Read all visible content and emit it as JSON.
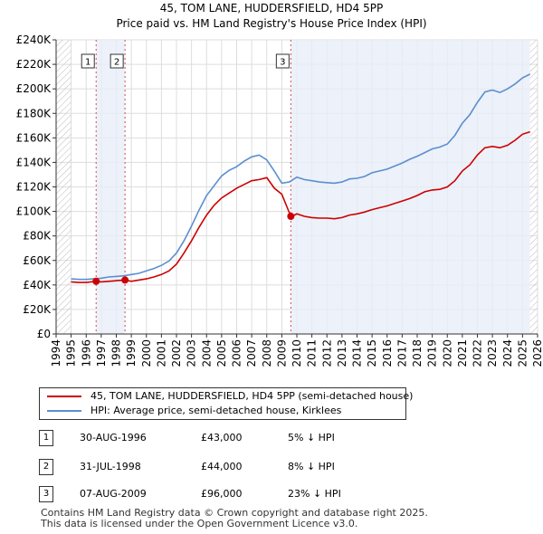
{
  "title": {
    "line1": "45, TOM LANE, HUDDERSFIELD, HD4 5PP",
    "line2": "Price paid vs. HM Land Registry's House Price Index (HPI)"
  },
  "legend": {
    "red_label": "45, TOM LANE, HUDDERSFIELD, HD4 5PP (semi-detached house)",
    "blue_label": "HPI: Average price, semi-detached house, Kirklees"
  },
  "transactions": [
    {
      "num": "1",
      "date": "30-AUG-1996",
      "price": "£43,000",
      "hpi": "5% ↓ HPI"
    },
    {
      "num": "2",
      "date": "31-JUL-1998",
      "price": "£44,000",
      "hpi": "8% ↓ HPI"
    },
    {
      "num": "3",
      "date": "07-AUG-2009",
      "price": "£96,000",
      "hpi": "23% ↓ HPI"
    }
  ],
  "footer": {
    "line1": "Contains HM Land Registry data © Crown copyright and database right 2025.",
    "line2": "This data is licensed under the Open Government Licence v3.0."
  },
  "colors": {
    "red": "#cc0000",
    "blue": "#5b8fd0",
    "grid": "#dddddd",
    "shade": "#e8eef8",
    "hatch": "#bbbbbb"
  },
  "chart_data": {
    "type": "line",
    "title": "45, TOM LANE, HUDDERSFIELD, HD4 5PP — Price paid vs. HM Land Registry's House Price Index (HPI)",
    "xlabel": "",
    "ylabel": "",
    "xlim": [
      1994,
      2026
    ],
    "ylim": [
      0,
      240000
    ],
    "x_ticks": [
      "1994",
      "1995",
      "1996",
      "1997",
      "1998",
      "1999",
      "2000",
      "2001",
      "2002",
      "2003",
      "2004",
      "2005",
      "2006",
      "2007",
      "2008",
      "2009",
      "2010",
      "2011",
      "2012",
      "2013",
      "2014",
      "2015",
      "2016",
      "2017",
      "2018",
      "2019",
      "2020",
      "2021",
      "2022",
      "2023",
      "2024",
      "2025",
      "2026"
    ],
    "y_ticks": [
      0,
      20000,
      40000,
      60000,
      80000,
      100000,
      120000,
      140000,
      160000,
      180000,
      200000,
      220000,
      240000
    ],
    "y_tick_labels": [
      "£0",
      "£20K",
      "£40K",
      "£60K",
      "£80K",
      "£100K",
      "£120K",
      "£140K",
      "£160K",
      "£180K",
      "£200K",
      "£220K",
      "£240K"
    ],
    "data_start_year": 1995,
    "data_end_year": 2025.5,
    "series": [
      {
        "name": "HPI: Average price, semi-detached house, Kirklees",
        "x": [
          1995.0,
          1995.5,
          1996.0,
          1996.5,
          1997.0,
          1997.5,
          1998.0,
          1998.5,
          1999.0,
          1999.5,
          2000.0,
          2000.5,
          2001.0,
          2001.5,
          2002.0,
          2002.5,
          2003.0,
          2003.5,
          2004.0,
          2004.5,
          2005.0,
          2005.5,
          2006.0,
          2006.5,
          2007.0,
          2007.5,
          2008.0,
          2008.5,
          2009.0,
          2009.5,
          2010.0,
          2010.5,
          2011.0,
          2011.5,
          2012.0,
          2012.5,
          2013.0,
          2013.5,
          2014.0,
          2014.5,
          2015.0,
          2015.5,
          2016.0,
          2016.5,
          2017.0,
          2017.5,
          2018.0,
          2018.5,
          2019.0,
          2019.5,
          2020.0,
          2020.5,
          2021.0,
          2021.5,
          2022.0,
          2022.5,
          2023.0,
          2023.5,
          2024.0,
          2024.5,
          2025.0,
          2025.5
        ],
        "y": [
          45000,
          44500,
          44500,
          45000,
          45500,
          46500,
          47000,
          47500,
          48500,
          49500,
          51500,
          53500,
          56000,
          59500,
          66000,
          76000,
          88000,
          101000,
          113000,
          121000,
          129000,
          133500,
          136500,
          141000,
          144500,
          146000,
          142000,
          133000,
          123000,
          124000,
          128000,
          126000,
          125000,
          124000,
          123500,
          123000,
          124000,
          126500,
          127000,
          128500,
          131500,
          133000,
          134500,
          137000,
          139500,
          142500,
          145000,
          148000,
          151000,
          152500,
          155000,
          162000,
          172000,
          179000,
          189000,
          197500,
          199000,
          197000,
          200000,
          204000,
          209000,
          212000
        ]
      },
      {
        "name": "45, TOM LANE, HUDDERSFIELD, HD4 5PP (semi-detached house)",
        "x": [
          1995.0,
          1995.5,
          1996.0,
          1996.66,
          1997.0,
          1997.5,
          1998.0,
          1998.58,
          1999.0,
          1999.5,
          2000.0,
          2000.5,
          2001.0,
          2001.5,
          2002.0,
          2002.5,
          2003.0,
          2003.5,
          2004.0,
          2004.5,
          2005.0,
          2005.5,
          2006.0,
          2006.5,
          2007.0,
          2007.5,
          2008.0,
          2008.5,
          2009.0,
          2009.6,
          2009.7,
          2010.0,
          2010.5,
          2011.0,
          2011.5,
          2012.0,
          2012.5,
          2013.0,
          2013.5,
          2014.0,
          2014.5,
          2015.0,
          2015.5,
          2016.0,
          2016.5,
          2017.0,
          2017.5,
          2018.0,
          2018.5,
          2019.0,
          2019.5,
          2020.0,
          2020.5,
          2021.0,
          2021.5,
          2022.0,
          2022.5,
          2023.0,
          2023.5,
          2024.0,
          2024.5,
          2025.0,
          2025.5
        ],
        "y": [
          42500,
          42000,
          42000,
          43000,
          42500,
          43000,
          43500,
          44000,
          43000,
          44000,
          45000,
          46500,
          48500,
          51500,
          57000,
          66000,
          76000,
          87000,
          97000,
          105000,
          111000,
          115000,
          119000,
          122000,
          125000,
          126000,
          127500,
          119000,
          114000,
          96000,
          96000,
          98000,
          96000,
          95000,
          94500,
          94500,
          94000,
          95000,
          97000,
          98000,
          99500,
          101500,
          103000,
          104500,
          106500,
          108500,
          110500,
          113000,
          116000,
          117500,
          118000,
          120000,
          125000,
          133000,
          138000,
          146000,
          152000,
          153000,
          152000,
          154000,
          158000,
          163000,
          165000
        ]
      }
    ],
    "sales": [
      {
        "label": "1",
        "year": 1996.66,
        "price": 43000
      },
      {
        "label": "2",
        "year": 1998.58,
        "price": 44000
      },
      {
        "label": "3",
        "year": 2009.6,
        "price": 96000
      }
    ]
  }
}
